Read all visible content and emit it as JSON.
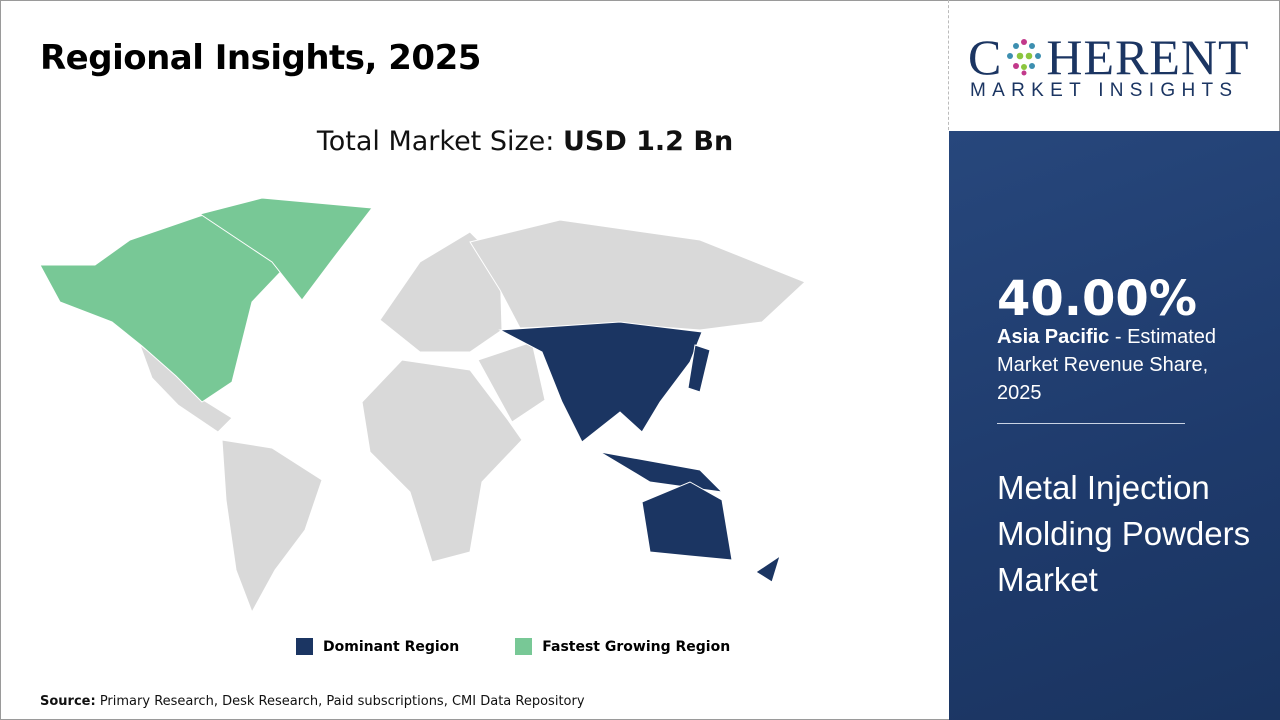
{
  "header": {
    "title": "Regional Insights, 2025"
  },
  "market_size": {
    "label": "Total Market Size: ",
    "value": "USD 1.2 Bn"
  },
  "map": {
    "colors": {
      "dominant": "#1b3562",
      "fastest": "#78c896",
      "other": "#d9d9d9"
    },
    "dominant_region": "Asia Pacific",
    "fastest_growing_region": "North America"
  },
  "legend": [
    {
      "label": "Dominant Region",
      "color": "#1b3562"
    },
    {
      "label": "Fastest Growing Region",
      "color": "#78c896"
    }
  ],
  "source": {
    "label": "Source:",
    "text": " Primary Research, Desk Research, Paid subscriptions, CMI Data Repository"
  },
  "logo": {
    "line1": "COHERENT",
    "line2": "MARKET INSIGHTS"
  },
  "panel": {
    "share": "40.00%",
    "region": "Asia Pacific",
    "desc": " - Estimated Market Revenue Share, 2025",
    "market": "Metal Injection Molding Powders Market",
    "bg_color": "#1e3a6b"
  }
}
